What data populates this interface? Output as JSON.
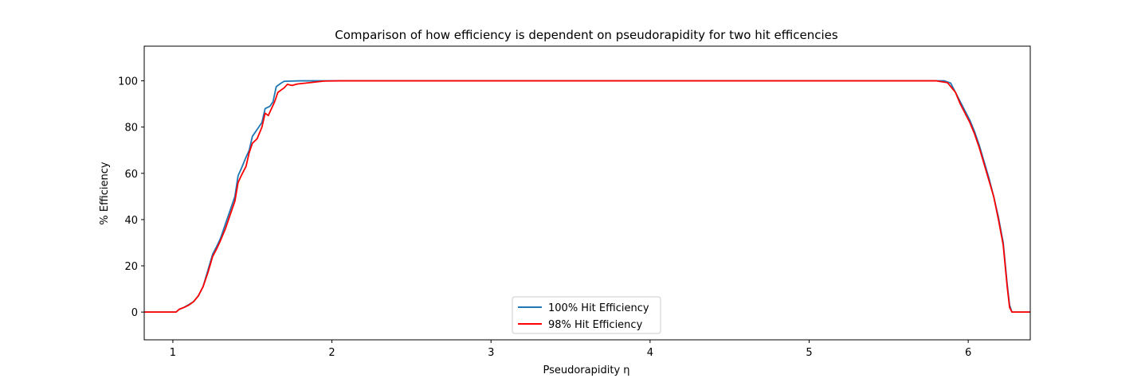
{
  "chart_data": {
    "type": "line",
    "title": "Comparison of how efficiency is dependent on pseudorapidity for two hit efficencies",
    "xlabel": "Pseudorapidity η",
    "ylabel": "% Efficiency",
    "xlim": [
      0.82,
      6.39
    ],
    "ylim": [
      -12,
      115
    ],
    "xticks": [
      1,
      2,
      3,
      4,
      5,
      6
    ],
    "yticks": [
      0,
      20,
      40,
      60,
      80,
      100
    ],
    "grid": false,
    "legend_position": "lower center",
    "series": [
      {
        "name": "100% Hit Efficiency",
        "color": "#1f77b4",
        "points": [
          [
            0.82,
            0
          ],
          [
            1.02,
            0
          ],
          [
            1.04,
            1.2
          ],
          [
            1.07,
            2
          ],
          [
            1.1,
            3.2
          ],
          [
            1.13,
            4.5
          ],
          [
            1.16,
            7
          ],
          [
            1.19,
            11
          ],
          [
            1.22,
            18
          ],
          [
            1.25,
            25
          ],
          [
            1.28,
            29
          ],
          [
            1.3,
            32
          ],
          [
            1.33,
            38
          ],
          [
            1.36,
            44
          ],
          [
            1.39,
            50
          ],
          [
            1.41,
            59
          ],
          [
            1.43,
            62
          ],
          [
            1.46,
            67
          ],
          [
            1.48,
            70
          ],
          [
            1.5,
            76
          ],
          [
            1.53,
            79
          ],
          [
            1.56,
            82
          ],
          [
            1.58,
            88
          ],
          [
            1.61,
            89
          ],
          [
            1.63,
            91
          ],
          [
            1.65,
            97.5
          ],
          [
            1.68,
            99
          ],
          [
            1.7,
            99.8
          ],
          [
            1.8,
            100
          ],
          [
            5.85,
            100
          ],
          [
            5.89,
            99
          ],
          [
            5.92,
            95
          ],
          [
            5.95,
            91
          ],
          [
            5.98,
            87
          ],
          [
            6.01,
            83
          ],
          [
            6.04,
            78
          ],
          [
            6.07,
            72
          ],
          [
            6.1,
            65
          ],
          [
            6.13,
            58
          ],
          [
            6.16,
            50
          ],
          [
            6.19,
            41
          ],
          [
            6.22,
            30
          ],
          [
            6.245,
            12
          ],
          [
            6.26,
            3
          ],
          [
            6.275,
            0
          ],
          [
            6.39,
            0
          ]
        ]
      },
      {
        "name": "98% Hit Efficiency",
        "color": "#ff0000",
        "points": [
          [
            0.82,
            0
          ],
          [
            1.02,
            0
          ],
          [
            1.04,
            1.2
          ],
          [
            1.07,
            2
          ],
          [
            1.1,
            3
          ],
          [
            1.13,
            4.5
          ],
          [
            1.16,
            7
          ],
          [
            1.19,
            11
          ],
          [
            1.22,
            17
          ],
          [
            1.25,
            24
          ],
          [
            1.28,
            28
          ],
          [
            1.3,
            31
          ],
          [
            1.33,
            36
          ],
          [
            1.36,
            42
          ],
          [
            1.39,
            48
          ],
          [
            1.41,
            56
          ],
          [
            1.43,
            59
          ],
          [
            1.46,
            63
          ],
          [
            1.48,
            69
          ],
          [
            1.5,
            73
          ],
          [
            1.53,
            75
          ],
          [
            1.56,
            80
          ],
          [
            1.58,
            86
          ],
          [
            1.6,
            85
          ],
          [
            1.62,
            88
          ],
          [
            1.64,
            91
          ],
          [
            1.66,
            95
          ],
          [
            1.68,
            96
          ],
          [
            1.7,
            97
          ],
          [
            1.72,
            98.5
          ],
          [
            1.75,
            98
          ],
          [
            1.78,
            98.6
          ],
          [
            1.82,
            98.9
          ],
          [
            1.86,
            99.2
          ],
          [
            1.9,
            99.5
          ],
          [
            1.95,
            99.9
          ],
          [
            2.05,
            100
          ],
          [
            5.8,
            100
          ],
          [
            5.87,
            99.2
          ],
          [
            5.92,
            95
          ],
          [
            5.95,
            90
          ],
          [
            5.98,
            86
          ],
          [
            6.01,
            82
          ],
          [
            6.04,
            77
          ],
          [
            6.07,
            71
          ],
          [
            6.1,
            64
          ],
          [
            6.13,
            57
          ],
          [
            6.16,
            50
          ],
          [
            6.19,
            40
          ],
          [
            6.22,
            29
          ],
          [
            6.245,
            11
          ],
          [
            6.26,
            2
          ],
          [
            6.275,
            0
          ],
          [
            6.39,
            0
          ]
        ]
      }
    ]
  }
}
